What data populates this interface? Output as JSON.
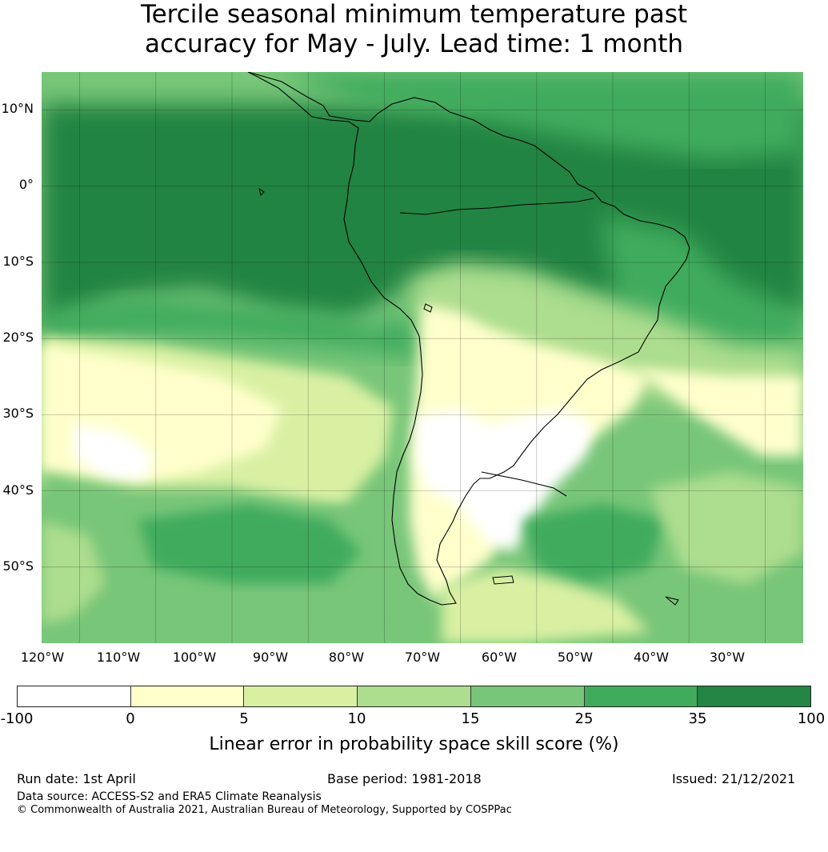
{
  "title": {
    "line1": "Tercile seasonal minimum temperature past",
    "line2": "accuracy for May - July. Lead time: 1 month"
  },
  "map": {
    "lat_labels": [
      "10°N",
      "0°",
      "10°S",
      "20°S",
      "30°S",
      "40°S",
      "50°S"
    ],
    "lon_labels": [
      "120°W",
      "110°W",
      "100°W",
      "90°W",
      "80°W",
      "70°W",
      "60°W",
      "50°W",
      "40°W",
      "30°W"
    ],
    "extent": {
      "lon_min": -125,
      "lon_max": -25,
      "lat_min": -60,
      "lat_max": 15
    },
    "colors": {
      "lt0": "#ffffff",
      "c0_5": "#ffffcc",
      "c5_10": "#d9f0a3",
      "c10_15": "#addd8e",
      "c15_25": "#78c679",
      "c25_35": "#41ab5d",
      "c35_100": "#238443"
    }
  },
  "colorbar": {
    "ticks": [
      "-100",
      "0",
      "5",
      "10",
      "15",
      "25",
      "35",
      "100"
    ],
    "colors": [
      "#ffffff",
      "#ffffcc",
      "#d9f0a3",
      "#addd8e",
      "#78c679",
      "#41ab5d",
      "#238443"
    ],
    "label": "Linear error in probability space skill score (%)"
  },
  "footer": {
    "run_date": "Run date: 1st April",
    "base_period": "Base period: 1981-2018",
    "issued": "Issued: 21/12/2021",
    "data_source": "Data source: ACCESS-S2 and ERA5 Climate Reanalysis",
    "copyright": "© Commonwealth of Australia 2021, Australian Bureau of Meteorology, Supported by COSPPac"
  }
}
